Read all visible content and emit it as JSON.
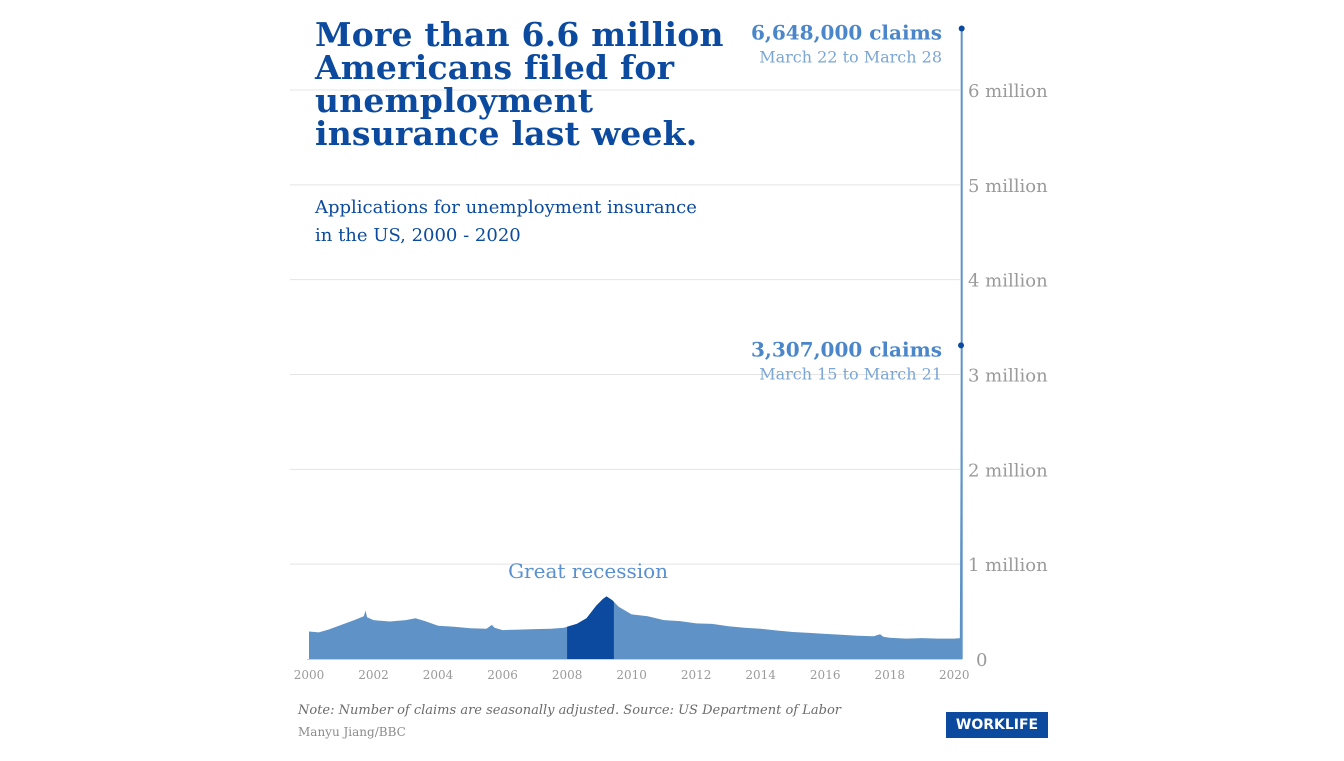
{
  "title": "More than 6.6 million Americans filed for unemployment insurance last week.",
  "subtitle_line1": "Applications for unemployment insurance",
  "subtitle_line2": "in the US, 2000 - 2020",
  "note": "Note: Number of claims are seasonally adjusted. Source: US Department of Labor",
  "credit": "Manyu Jiang/BBC",
  "brand": "WORKLIFE",
  "colors": {
    "title": "#0b4a9e",
    "area": "#5f93c7",
    "recession": "#0b4a9e",
    "spike": "#5f93c7",
    "annotation_value": "#4a86c9",
    "annotation_date": "#7aa6d6",
    "recession_label": "#5a90cf",
    "grid": "#e4e4e4",
    "axis_label": "#9a9a9a"
  },
  "chart_data": {
    "type": "area",
    "title": "More than 6.6 million Americans filed for unemployment insurance last week.",
    "subtitle": "Applications for unemployment insurance in the US, 2000 - 2020",
    "x_ticks": [
      "2000",
      "2002",
      "2004",
      "2006",
      "2008",
      "2010",
      "2012",
      "2014",
      "2016",
      "2018",
      "2020"
    ],
    "xlim": [
      2000,
      2020.24
    ],
    "y_ticks": [
      {
        "value": 0,
        "label": "0"
      },
      {
        "value": 1000000,
        "label": "1 million"
      },
      {
        "value": 2000000,
        "label": "2 million"
      },
      {
        "value": 3000000,
        "label": "3 million"
      },
      {
        "value": 4000000,
        "label": "4 million"
      },
      {
        "value": 5000000,
        "label": "5 million"
      },
      {
        "value": 6000000,
        "label": "6 million"
      }
    ],
    "ylim": [
      0,
      6648000
    ],
    "grid": true,
    "series": [
      {
        "x": [
          2000.0,
          2000.3,
          2000.6,
          2001.0,
          2001.4,
          2001.7,
          2001.75,
          2001.8,
          2002.0,
          2002.5,
          2003.0,
          2003.3,
          2003.6,
          2004.0,
          2004.5,
          2005.0,
          2005.5,
          2005.67,
          2005.75,
          2006.0,
          2006.5,
          2007.0,
          2007.5,
          2007.9,
          2008.3,
          2008.6,
          2008.9,
          2009.1,
          2009.22,
          2009.4,
          2009.6,
          2010.0,
          2010.5,
          2011.0,
          2011.5,
          2012.0,
          2012.5,
          2013.0,
          2013.5,
          2014.0,
          2014.5,
          2015.0,
          2015.5,
          2016.0,
          2016.5,
          2017.0,
          2017.5,
          2017.7,
          2017.8,
          2018.0,
          2018.5,
          2019.0,
          2019.5,
          2020.0,
          2020.18
        ],
        "y": [
          290000,
          280000,
          310000,
          360000,
          410000,
          450000,
          510000,
          440000,
          410000,
          395000,
          410000,
          430000,
          400000,
          350000,
          340000,
          325000,
          320000,
          360000,
          330000,
          305000,
          310000,
          315000,
          320000,
          330000,
          370000,
          430000,
          560000,
          630000,
          660000,
          620000,
          550000,
          470000,
          450000,
          410000,
          400000,
          375000,
          370000,
          345000,
          330000,
          320000,
          300000,
          285000,
          275000,
          265000,
          255000,
          245000,
          240000,
          260000,
          235000,
          225000,
          215000,
          220000,
          215000,
          215000,
          220000
        ]
      }
    ],
    "recession_span": [
      2008.0,
      2009.45
    ],
    "spikes": [
      {
        "x": 2020.21,
        "value": 3307000,
        "label": "3,307,000 claims",
        "date": "March 15 to March 21"
      },
      {
        "x": 2020.23,
        "value": 6648000,
        "label": "6,648,000 claims",
        "date": "March 22 to March 28"
      }
    ],
    "annotations": [
      {
        "text": "Great recession",
        "x": 2008.65,
        "value": 880000
      }
    ]
  }
}
